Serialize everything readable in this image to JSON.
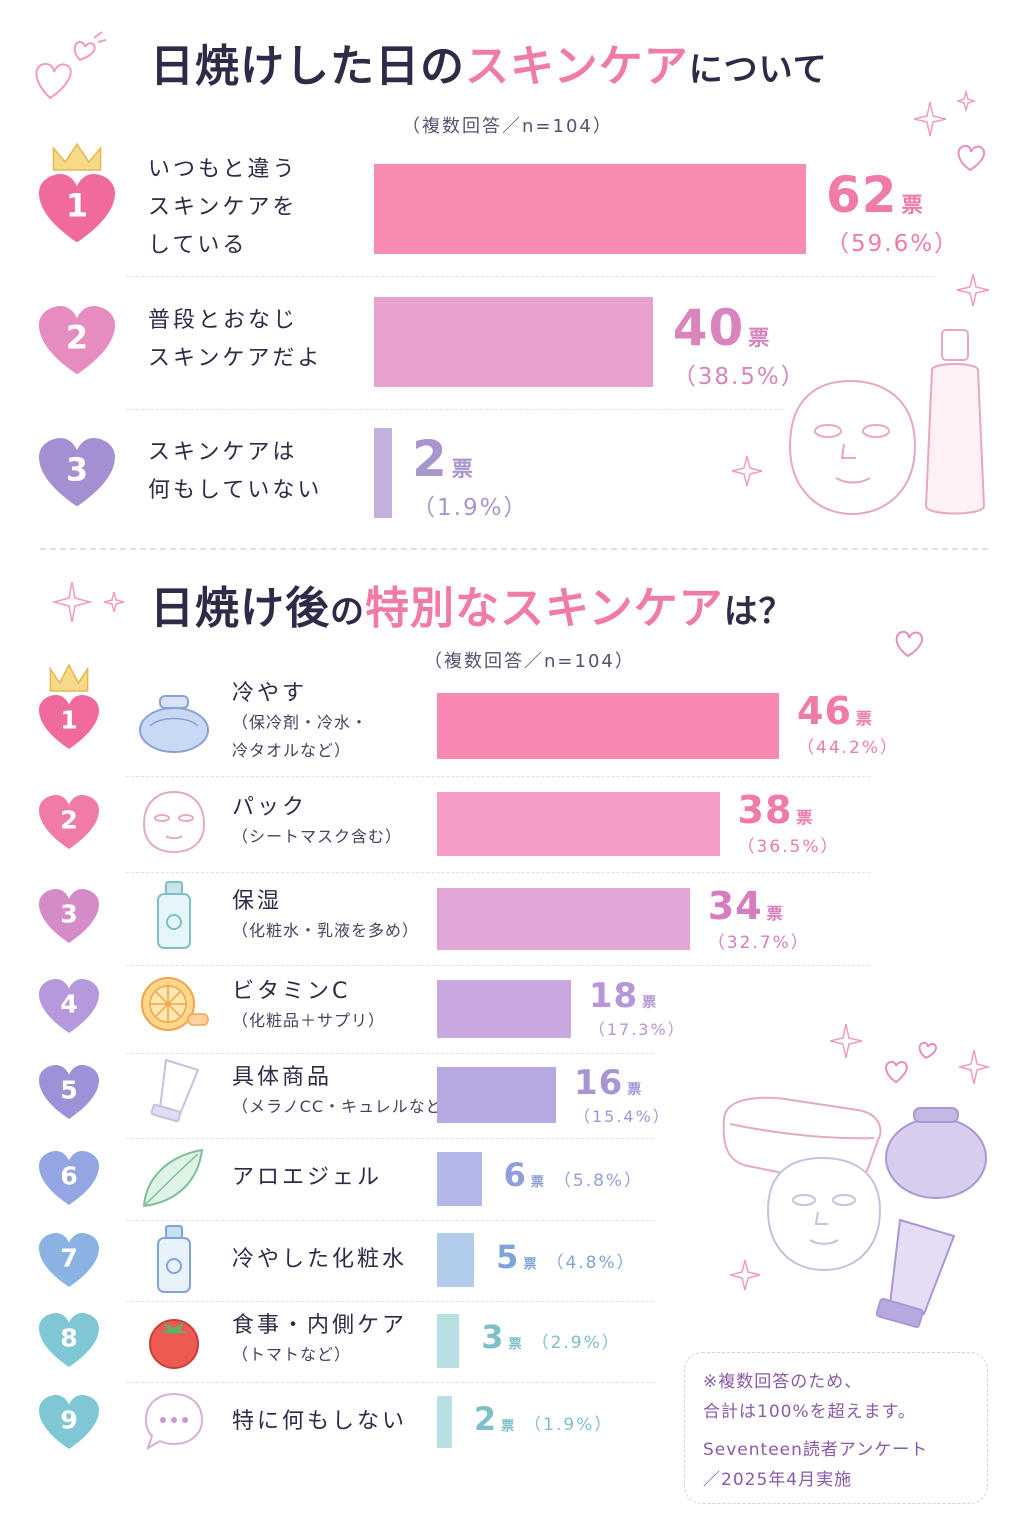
{
  "chart_data": [
    {
      "type": "bar",
      "title": {
        "a": "日焼けした日の",
        "b": "スキンケア",
        "c": "について"
      },
      "note": "（複数回答／n=104）",
      "categories": [
        "いつもと違う\nスキンケアを\nしている",
        "普段とおなじ\nスキンケアだよ",
        "スキンケアは\n何もしていない"
      ],
      "values": [
        62,
        40,
        2
      ],
      "value_labels": [
        "62",
        "40",
        "2"
      ],
      "percent_labels": [
        "（59.6%）",
        "（38.5%）",
        "（1.9%）"
      ],
      "ranks": [
        "1",
        "2",
        "3"
      ],
      "unit": "票",
      "xlim": [
        0,
        62
      ],
      "bar_colors": [
        "#f88bb2",
        "#e7a2cd",
        "#c4b0dc"
      ],
      "text_colors": [
        "#f07aa8",
        "#d984bd",
        "#a895cd"
      ],
      "heart_colors": [
        "#f06a9e",
        "#e78cbf",
        "#a48fd2"
      ]
    },
    {
      "type": "bar",
      "title": {
        "a": "日焼け後",
        "b": "の",
        "c": "特別なスキンケア",
        "d": "は？"
      },
      "note": "（複数回答／n=104）",
      "categories": [
        {
          "main": "冷やす",
          "sub": "（保冷剤・冷水・\n冷タオルなど）",
          "icon": "ice-bag-icon"
        },
        {
          "main": "パック",
          "sub": "（シートマスク含む）",
          "icon": "sheet-mask-icon"
        },
        {
          "main": "保湿",
          "sub": "（化粧水・乳液を多め）",
          "icon": "lotion-bottle-icon"
        },
        {
          "main": "ビタミンC",
          "sub": "（化粧品＋サプリ）",
          "icon": "orange-slice-icon"
        },
        {
          "main": "具体商品",
          "sub": "（メラノCC・キュレルなど）",
          "icon": "tube-icon"
        },
        {
          "main": "アロエジェル",
          "sub": "",
          "icon": "aloe-leaf-icon"
        },
        {
          "main": "冷やした化粧水",
          "sub": "",
          "icon": "toner-bottle-icon"
        },
        {
          "main": "食事・内側ケア",
          "sub": "（トマトなど）",
          "icon": "tomato-icon"
        },
        {
          "main": "特に何もしない",
          "sub": "",
          "icon": "speech-bubble-icon"
        }
      ],
      "values": [
        46,
        38,
        34,
        18,
        16,
        6,
        5,
        3,
        2
      ],
      "value_labels": [
        "46",
        "38",
        "34",
        "18",
        "16",
        "6",
        "5",
        "3",
        "2"
      ],
      "percent_labels": [
        "（44.2%）",
        "（36.5%）",
        "（32.7%）",
        "（17.3%）",
        "（15.4%）",
        "（5.8%）",
        "（4.8%）",
        "（2.9%）",
        "（1.9%）"
      ],
      "ranks": [
        "1",
        "2",
        "3",
        "4",
        "5",
        "6",
        "7",
        "8",
        "9"
      ],
      "unit": "票",
      "xlim": [
        0,
        46
      ],
      "bar_colors": [
        "#f888b3",
        "#f49bc7",
        "#e2a6d6",
        "#c9a8e1",
        "#b8a8e1",
        "#b3b8ea",
        "#b2cdec",
        "#b8e0e4",
        "#b8e0e4"
      ],
      "text_colors": [
        "#f07aa8",
        "#f07aa8",
        "#d67dbf",
        "#b696d8",
        "#a795d4",
        "#8f9fdd",
        "#7fa5d8",
        "#7fbfc8",
        "#7fbfc8"
      ],
      "heart_colors": [
        "#f06a9e",
        "#f07aa8",
        "#d58bc7",
        "#b699dd",
        "#9d92d8",
        "#93a5e2",
        "#8ab3e4",
        "#80c7d6",
        "#80c7d6"
      ]
    }
  ],
  "footnote": {
    "line1": "※複数回答のため、",
    "line2": "合計は100%を超えます。",
    "line3": "Seventeen読者アンケート",
    "line4": "／2025年4月実施"
  }
}
